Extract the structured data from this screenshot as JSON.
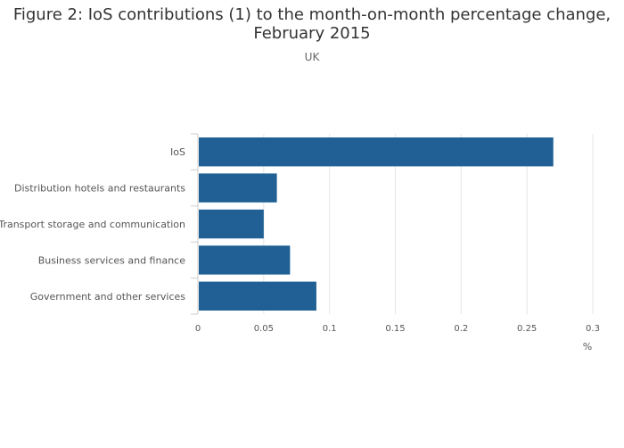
{
  "header": {
    "title_line1": "Figure 2: IoS contributions (1) to the month-on-month percentage change,",
    "title_line2": "February 2015",
    "subtitle": "UK"
  },
  "chart_data": {
    "type": "bar",
    "orientation": "horizontal",
    "title": "Figure 2: IoS contributions (1) to the month-on-month percentage change, February 2015",
    "subtitle": "UK",
    "categories": [
      "IoS",
      "Distribution hotels and restaurants",
      "Transport storage and communication",
      "Business services and finance",
      "Government and other services"
    ],
    "values": [
      0.27,
      0.06,
      0.05,
      0.07,
      0.09
    ],
    "xlabel": "%",
    "ylabel": "",
    "xlim": [
      0,
      0.3
    ],
    "xticks": [
      0,
      0.05,
      0.1,
      0.15,
      0.2,
      0.25,
      0.3
    ],
    "xtick_labels": [
      "0",
      "0.05",
      "0.1",
      "0.15",
      "0.2",
      "0.25",
      "0.3"
    ],
    "grid": true,
    "bar_color": "#206095"
  }
}
